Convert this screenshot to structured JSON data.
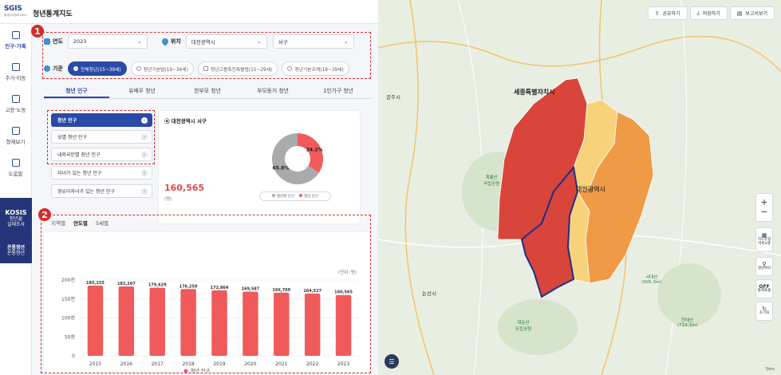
{
  "app": {
    "logo_line1": "SGIS",
    "logo_line2": "통계지리정보서비스",
    "title": "청년통계지도"
  },
  "sidebar": {
    "items": [
      {
        "label": "인구·가족",
        "icon": "people-icon"
      },
      {
        "label": "주거·이동",
        "icon": "house-icon"
      },
      {
        "label": "고용·노동",
        "icon": "briefcase-icon"
      },
      {
        "label": "형제보기",
        "icon": "book-icon"
      },
      {
        "label": "도움말",
        "icon": "help-icon"
      }
    ],
    "kosis_title": "KOSIS",
    "kosis_sub1": "청년삶",
    "kosis_sub2": "실태조사",
    "youth_logo": "온통청년",
    "youth_label": "온통청년"
  },
  "filters": {
    "year_label": "연도",
    "year_value": "2023",
    "location_label": "위치",
    "sido_value": "대전광역시",
    "sigungu_value": "서구",
    "basis_label": "기준",
    "options": [
      "전체청년(15~39세)",
      "청년기본법(19~34세)",
      "청년고용촉진특별법(15~29세)",
      "청년기본조례(19~39세)"
    ],
    "selected_option": 0
  },
  "annotations": {
    "badge1": "1",
    "badge2": "2"
  },
  "tabs": [
    "청년 인구",
    "유배우 청년",
    "한부모 청년",
    "부모동거 청년",
    "1인가구 청년"
  ],
  "active_tab": 0,
  "menu": [
    "청년 인구",
    "성별 청년 인구",
    "내외국인별 청년 인구",
    "자녀가 있는 청년 인구",
    "영유아자녀가 있는 청년 인구"
  ],
  "active_menu": 0,
  "info": {
    "region": "대전광역시 서구",
    "total": "160,565",
    "unit": "(명)",
    "pie": {
      "young_pct": 34.2,
      "other_pct": 65.8,
      "young_label": "34.2%",
      "other_label": "65.8%"
    },
    "legend_other": "청년외 인구",
    "legend_young": "청년 인구",
    "colors": {
      "young": "#f05a5a",
      "other": "#aaaaaa"
    }
  },
  "subtabs": [
    "지역별",
    "연도별",
    "5세별"
  ],
  "active_subtab": 1,
  "chart_data": {
    "type": "bar",
    "unit_label": "(단위: 명)",
    "categories": [
      "2015",
      "2016",
      "2017",
      "2018",
      "2019",
      "2020",
      "2021",
      "2022",
      "2023"
    ],
    "values": [
      185155,
      183207,
      179629,
      176250,
      172864,
      169587,
      166769,
      164527,
      160565
    ],
    "value_labels": [
      "185,155",
      "183,207",
      "179,629",
      "176,250",
      "172,864",
      "169,587",
      "166,769",
      "164,527",
      "160,565"
    ],
    "yticks": [
      0,
      50000,
      100000,
      150000,
      200000
    ],
    "ytick_labels": [
      "0",
      "50천",
      "100천",
      "150천",
      "200천"
    ],
    "ylim": [
      0,
      200000
    ],
    "series_name": "청년 인구",
    "color": "#f05a5a"
  },
  "map": {
    "buttons": [
      {
        "label": "공유하기",
        "icon": "share-icon"
      },
      {
        "label": "저장하기",
        "icon": "download-icon"
      },
      {
        "label": "보고서보기",
        "icon": "report-icon"
      }
    ],
    "controls": {
      "zoom_in": "+",
      "zoom_out": "−",
      "map_type_1": "지도유형",
      "map_type_2": "바로a셀",
      "poi": "청년POI",
      "off": "OFF",
      "stats_label": "통계표출",
      "reset": "초기화"
    },
    "labels": {
      "sejong": "세종특별자치시",
      "gongju": "공주시",
      "nonsan": "논산시",
      "daejeon": "대전광역시",
      "gyeryong": "계룡산\n국립공원",
      "daedun": "대둔산\n도립공원",
      "siru": "서대산\n(905.3m)",
      "chuncheon": "천태산\n(714.3m)"
    },
    "scale": "5km",
    "colors": {
      "high": "#d9453a",
      "mid": "#ef9a45",
      "low": "#f7d27a",
      "border": "#1f2e8a"
    }
  }
}
